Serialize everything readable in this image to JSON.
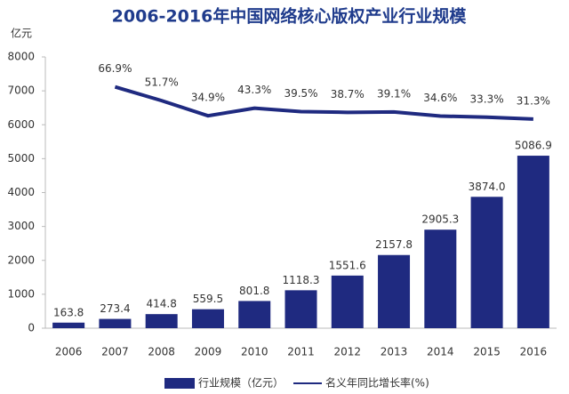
{
  "chart_data": {
    "type": "bar_line",
    "title": "2006-2016年中国网络核心版权产业行业规模",
    "y_label": "亿元",
    "categories": [
      "2006",
      "2007",
      "2008",
      "2009",
      "2010",
      "2011",
      "2012",
      "2013",
      "2014",
      "2015",
      "2016"
    ],
    "series": [
      {
        "name": "行业规模（亿元）",
        "color": "#1f2a80",
        "type": "bar",
        "values": [
          163.8,
          273.4,
          414.8,
          559.5,
          801.8,
          1118.3,
          1551.6,
          2157.8,
          2905.3,
          3874.0,
          5086.9
        ],
        "value_labels": [
          "163.8",
          "273.4",
          "414.8",
          "559.5",
          "801.8",
          "1118.3",
          "1551.6",
          "2157.8",
          "2905.3",
          "3874.0",
          "5086.9"
        ]
      },
      {
        "name": "名义年同比增长率(%)",
        "color": "#1f2a80",
        "type": "line",
        "axis": "y2",
        "values": [
          null,
          66.9,
          51.7,
          34.9,
          43.3,
          39.5,
          38.7,
          39.1,
          34.6,
          33.3,
          31.3
        ],
        "value_labels": [
          null,
          "66.9%",
          "51.7%",
          "34.9%",
          "43.3%",
          "39.5%",
          "38.7%",
          "39.1%",
          "34.6%",
          "33.3%",
          "31.3%"
        ]
      }
    ],
    "ylim": [
      0,
      8000
    ],
    "yticks": [
      0,
      1000,
      2000,
      3000,
      4000,
      5000,
      6000,
      7000,
      8000
    ],
    "y2lim": [
      -200,
      100
    ]
  }
}
